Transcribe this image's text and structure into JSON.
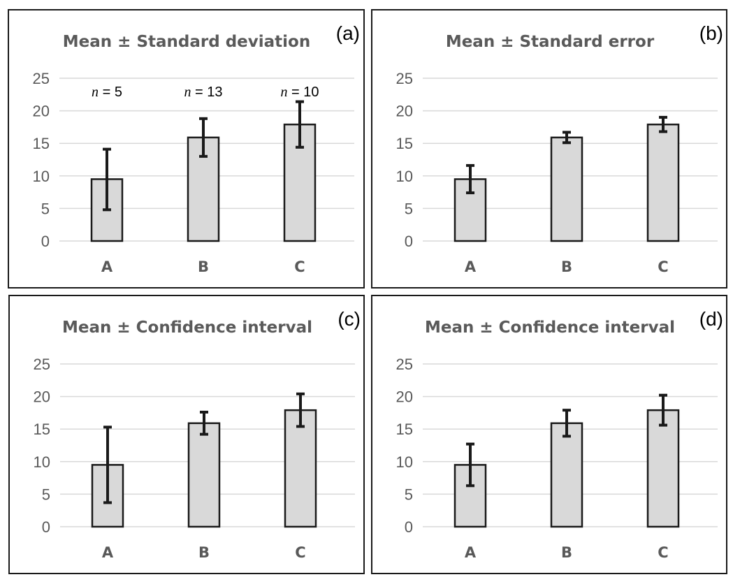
{
  "colors": {
    "bar_fill": "#d9d9d9",
    "bar_stroke": "#1a1a1a",
    "grid": "#d9d9d9",
    "title": "#5a5a5a",
    "tick": "#595959"
  },
  "chart_data": [
    {
      "type": "bar",
      "panel_label": "(a)",
      "title": "Mean ± Standard deviation",
      "categories": [
        "A",
        "B",
        "C"
      ],
      "values": [
        9.5,
        15.9,
        17.9
      ],
      "error_low": [
        4.8,
        13.0,
        14.4
      ],
      "error_high": [
        14.1,
        18.8,
        21.4
      ],
      "ylim": [
        0,
        25
      ],
      "yticks": [
        "0",
        "5",
        "10",
        "15",
        "20",
        "25"
      ],
      "grid": true,
      "annotations": [
        {
          "n_label": "n",
          "text": " = 5"
        },
        {
          "n_label": "n",
          "text": " = 13"
        },
        {
          "n_label": "n",
          "text": " = 10"
        }
      ]
    },
    {
      "type": "bar",
      "panel_label": "(b)",
      "title": "Mean ± Standard error",
      "categories": [
        "A",
        "B",
        "C"
      ],
      "values": [
        9.5,
        15.9,
        17.9
      ],
      "error_low": [
        7.4,
        15.1,
        16.8
      ],
      "error_high": [
        11.6,
        16.7,
        19.0
      ],
      "ylim": [
        0,
        25
      ],
      "yticks": [
        "0",
        "5",
        "10",
        "15",
        "20",
        "25"
      ],
      "grid": true
    },
    {
      "type": "bar",
      "panel_label": "(c)",
      "title": "Mean ± Confidence interval",
      "categories": [
        "A",
        "B",
        "C"
      ],
      "values": [
        9.5,
        15.9,
        17.9
      ],
      "error_low": [
        3.7,
        14.2,
        15.4
      ],
      "error_high": [
        15.3,
        17.6,
        20.4
      ],
      "ylim": [
        0,
        25
      ],
      "yticks": [
        "0",
        "5",
        "10",
        "15",
        "20",
        "25"
      ],
      "grid": true
    },
    {
      "type": "bar",
      "panel_label": "(d)",
      "title": "Mean ± Confidence interval",
      "categories": [
        "A",
        "B",
        "C"
      ],
      "values": [
        9.5,
        15.9,
        17.9
      ],
      "error_low": [
        6.3,
        13.9,
        15.6
      ],
      "error_high": [
        12.7,
        17.9,
        20.2
      ],
      "ylim": [
        0,
        25
      ],
      "yticks": [
        "0",
        "5",
        "10",
        "15",
        "20",
        "25"
      ],
      "grid": true
    }
  ]
}
